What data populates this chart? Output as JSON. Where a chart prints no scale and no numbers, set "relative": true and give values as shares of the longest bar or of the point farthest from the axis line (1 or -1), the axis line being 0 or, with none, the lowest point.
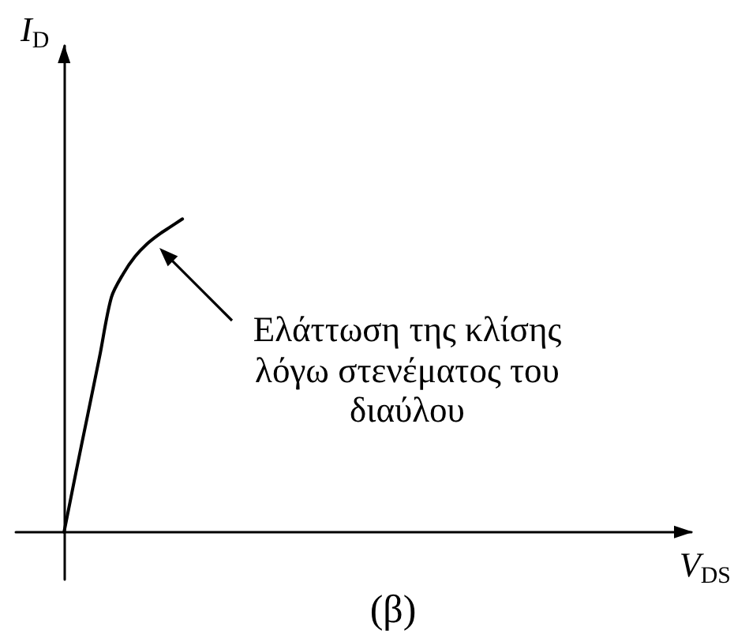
{
  "chart_data": {
    "type": "line",
    "title": "(β)",
    "xlabel": "V$_{DS}$",
    "ylabel": "I$_{D}$",
    "categories": [
      null,
      null,
      null,
      null,
      null,
      null,
      null,
      null,
      null,
      null,
      null,
      null,
      null,
      null,
      null,
      null,
      null,
      null,
      null,
      null,
      null,
      null,
      null,
      null,
      null,
      null,
      null,
      null,
      null,
      null,
      null,
      null,
      null,
      null,
      null,
      null,
      null,
      null,
      null,
      null,
      null,
      null,
      null,
      null,
      null,
      null,
      null,
      null,
      null,
      null,
      null,
      null,
      null,
      null
    ],
    "values": [
      0,
      0.19,
      0.375,
      0.56,
      0.75,
      0.825,
      0.88,
      0.92,
      0.95,
      0.975,
      1,
      null,
      null,
      null,
      null,
      null,
      null,
      null,
      null,
      null,
      null,
      null,
      null,
      null,
      null,
      null,
      null,
      null,
      null,
      null,
      null,
      null,
      null,
      null,
      null,
      null,
      null,
      null,
      null,
      null,
      null,
      null,
      null,
      null,
      null,
      null,
      null,
      null,
      null,
      null,
      null,
      null,
      null,
      null
    ],
    "color": "#000000",
    "relative": true,
    "grid": false,
    "marker": "none",
    "annotations": [
      "Ελάττωση της κλίσης λόγω στενέματος του διαύλου"
    ]
  }
}
